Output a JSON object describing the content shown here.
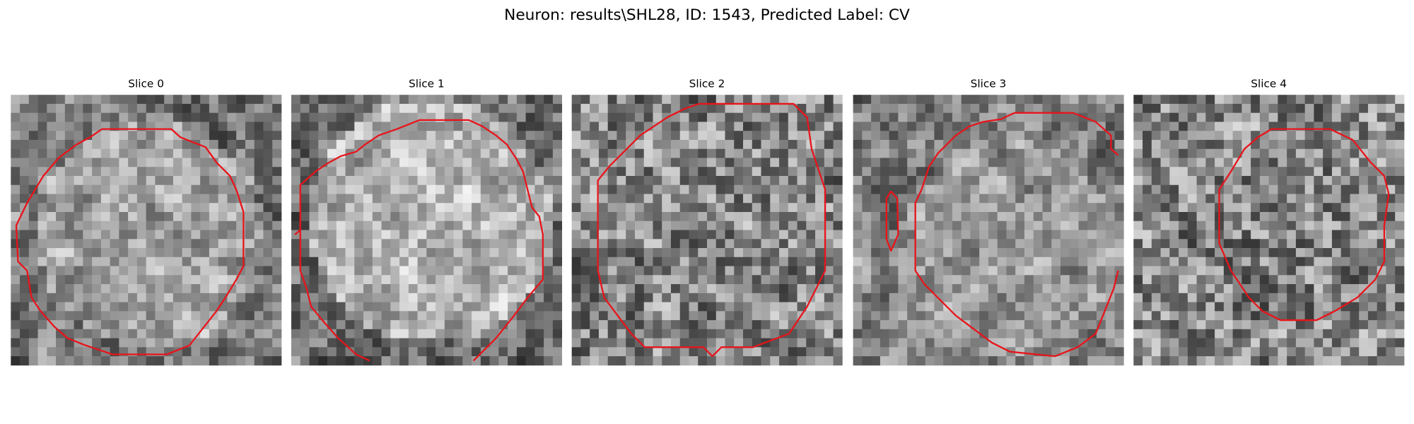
{
  "title": "Neuron: results\\SHL28, ID: 1543, Predicted Label: CV",
  "panels": [
    {
      "label": "Slice 0"
    },
    {
      "label": "Slice 1"
    },
    {
      "label": "Slice 2"
    },
    {
      "label": "Slice 3"
    },
    {
      "label": "Slice 4"
    }
  ]
}
